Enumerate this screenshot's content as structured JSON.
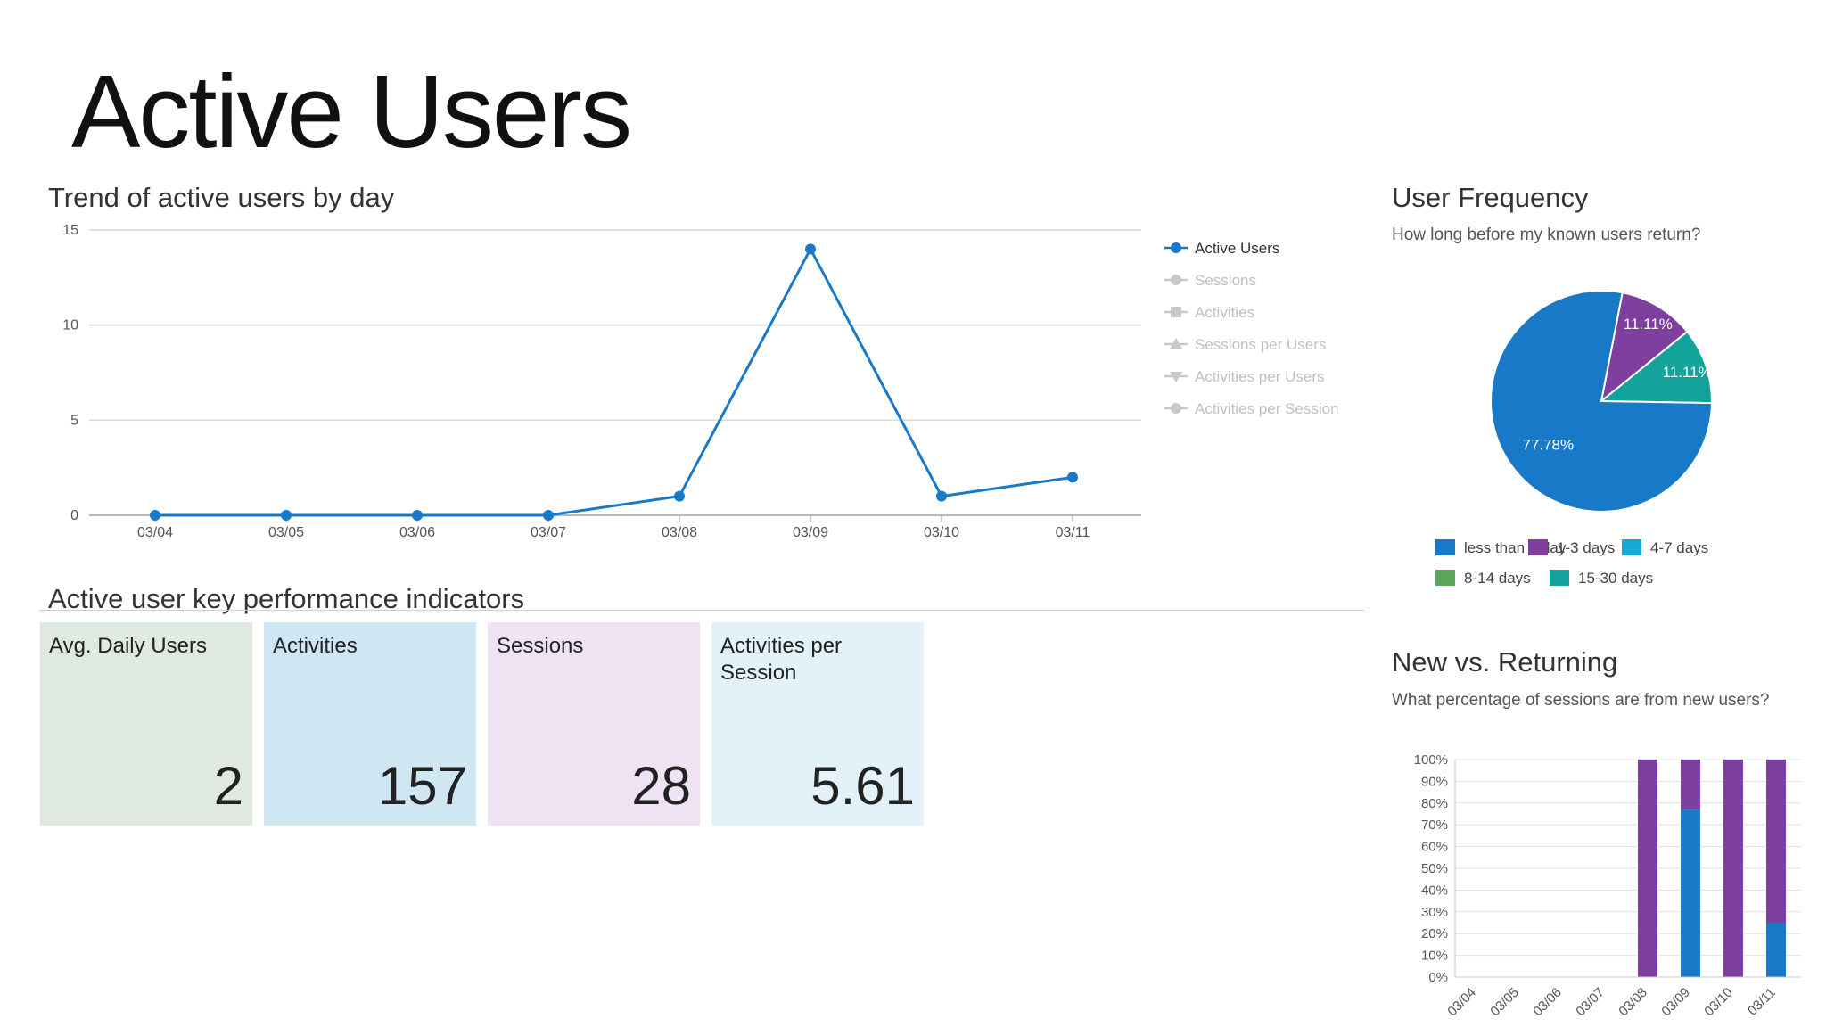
{
  "page_title": "Active Users",
  "trend": {
    "title": "Trend of active users by day"
  },
  "kpi": {
    "title": "Active user key performance indicators",
    "tiles": [
      {
        "label": "Avg. Daily Users",
        "value": "2",
        "color": "#dfe9df"
      },
      {
        "label": "Activities",
        "value": "157",
        "color": "#cfe7f3"
      },
      {
        "label": "Sessions",
        "value": "28",
        "color": "#efe2f3"
      },
      {
        "label": "Activities per Session",
        "value": "5.61",
        "color": "#e3f2f8"
      }
    ]
  },
  "frequency": {
    "title": "User Frequency",
    "subtitle": "How long before my known users return?"
  },
  "new_vs_returning": {
    "title": "New vs. Returning",
    "subtitle": "What percentage of sessions are from new users?"
  },
  "chart_data": [
    {
      "type": "line",
      "title": "Trend of active users by day",
      "x": [
        "03/04",
        "03/05",
        "03/06",
        "03/07",
        "03/08",
        "03/09",
        "03/10",
        "03/11"
      ],
      "ylim": [
        0,
        15
      ],
      "yticks": [
        0,
        5,
        10,
        15
      ],
      "grid": true,
      "legend_position": "right",
      "series": [
        {
          "name": "Active Users",
          "values": [
            0,
            0,
            0,
            0,
            1,
            14,
            1,
            2
          ],
          "color": "#1979c9",
          "active": true
        },
        {
          "name": "Sessions",
          "color": "#c8c8c8",
          "active": false,
          "marker": "circle"
        },
        {
          "name": "Activities",
          "color": "#c8c8c8",
          "active": false,
          "marker": "square"
        },
        {
          "name": "Sessions per Users",
          "color": "#c8c8c8",
          "active": false,
          "marker": "triangle-up"
        },
        {
          "name": "Activities per Users",
          "color": "#c8c8c8",
          "active": false,
          "marker": "triangle-down"
        },
        {
          "name": "Activities per Session",
          "color": "#c8c8c8",
          "active": false,
          "marker": "circle"
        }
      ]
    },
    {
      "type": "pie",
      "title": "User Frequency",
      "legend_position": "bottom",
      "categories": [
        "less than 1 day",
        "1-3 days",
        "4-7 days",
        "8-14 days",
        "15-30 days"
      ],
      "values": [
        77.78,
        11.11,
        0,
        0,
        11.11
      ],
      "labels": [
        "77.78%",
        "11.11%",
        "",
        "",
        "11.11%"
      ],
      "colors": [
        "#1979c9",
        "#7f3f9e",
        "#1aa6d6",
        "#5aa65a",
        "#14a39a"
      ]
    },
    {
      "type": "bar",
      "stacked": true,
      "title": "New vs. Returning",
      "categories": [
        "03/04",
        "03/05",
        "03/06",
        "03/07",
        "03/08",
        "03/09",
        "03/10",
        "03/11"
      ],
      "ylim": [
        0,
        100
      ],
      "yticks": [
        "0%",
        "10%",
        "20%",
        "30%",
        "40%",
        "50%",
        "60%",
        "70%",
        "80%",
        "90%",
        "100%"
      ],
      "series": [
        {
          "values": [
            0,
            0,
            0,
            0,
            0,
            77,
            0,
            25
          ],
          "color": "#1979c9"
        },
        {
          "values": [
            0,
            0,
            0,
            0,
            100,
            23,
            100,
            75
          ],
          "color": "#7f3f9e"
        }
      ]
    }
  ]
}
